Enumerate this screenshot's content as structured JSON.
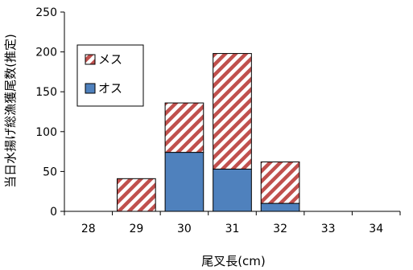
{
  "chart_data": {
    "type": "bar",
    "stacked": true,
    "categories": [
      "28",
      "29",
      "30",
      "31",
      "32",
      "33",
      "34"
    ],
    "series": [
      {
        "name": "オス",
        "values": [
          0,
          0,
          74,
          53,
          10,
          0,
          0
        ],
        "color": "#4f81bd",
        "pattern": "solid"
      },
      {
        "name": "メス",
        "values": [
          0,
          41,
          62,
          145,
          52,
          0,
          0
        ],
        "color": "#c0504d",
        "pattern": "diagonal-stripes"
      }
    ],
    "xlabel": "尾叉長(cm)",
    "ylabel": "当日水揚げ総漁獲尾数(推定)",
    "ylim": [
      0,
      250
    ],
    "yticks": [
      "0",
      "50",
      "100",
      "150",
      "200",
      "250"
    ],
    "legend": {
      "position": "top-left",
      "order": [
        "メス",
        "オス"
      ]
    },
    "grid": false
  }
}
